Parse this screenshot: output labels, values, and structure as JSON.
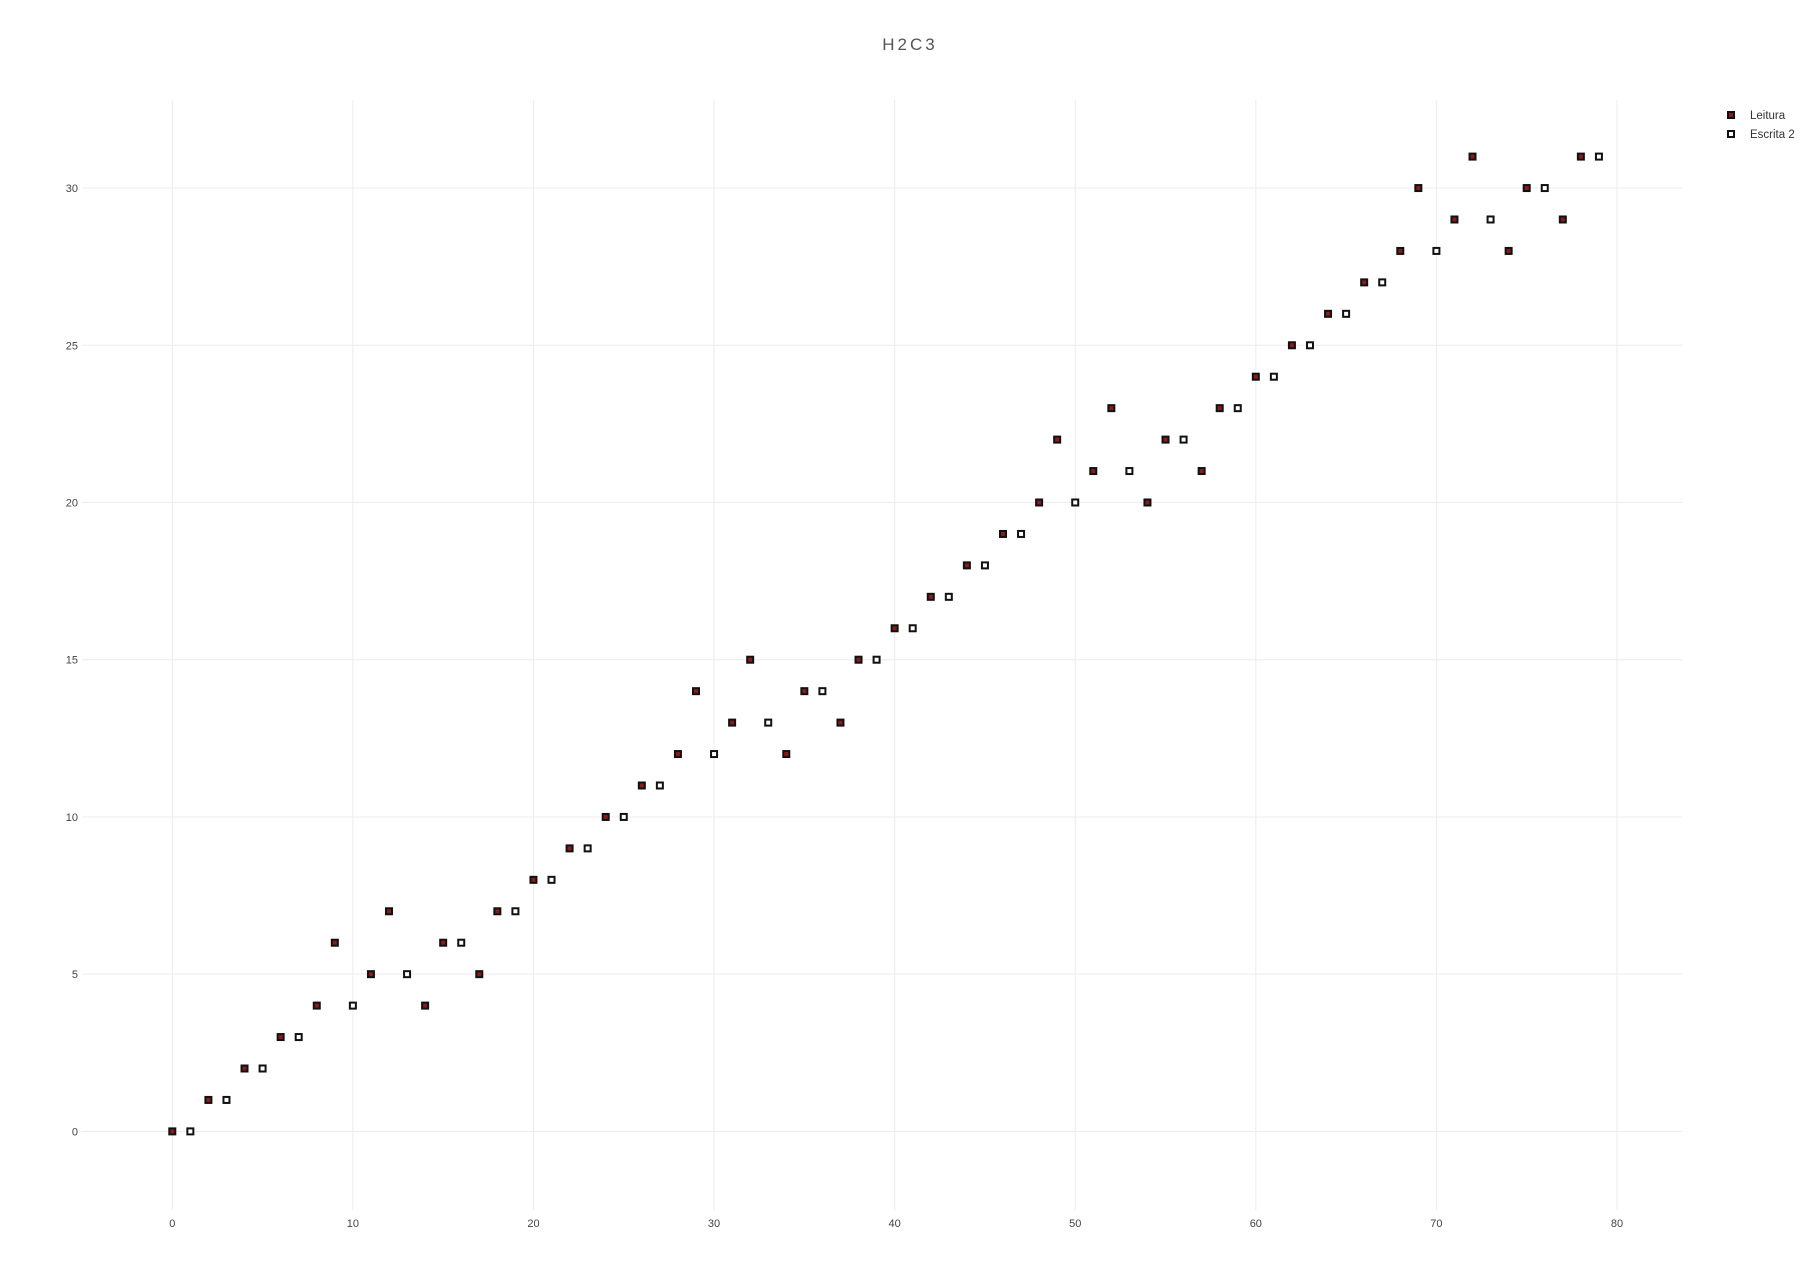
{
  "chart_data": {
    "type": "scatter",
    "title": "H2C3",
    "xlabel": "",
    "ylabel": "",
    "xlim": [
      -5,
      83.6
    ],
    "ylim": [
      -2.5,
      32.8
    ],
    "xticks": [
      0,
      10,
      20,
      30,
      40,
      50,
      60,
      70,
      80
    ],
    "yticks": [
      0,
      5,
      10,
      15,
      20,
      25,
      30
    ],
    "grid": true,
    "legend_position": "top-right",
    "series": [
      {
        "name": "Leitura",
        "fill": "#8b1a1a",
        "stroke": "#111111",
        "points": [
          [
            0,
            0
          ],
          [
            2,
            1
          ],
          [
            4,
            2
          ],
          [
            6,
            3
          ],
          [
            8,
            4
          ],
          [
            9,
            6
          ],
          [
            11,
            5
          ],
          [
            12,
            7
          ],
          [
            14,
            4
          ],
          [
            15,
            6
          ],
          [
            17,
            5
          ],
          [
            18,
            7
          ],
          [
            20,
            8
          ],
          [
            22,
            9
          ],
          [
            24,
            10
          ],
          [
            26,
            11
          ],
          [
            28,
            12
          ],
          [
            29,
            14
          ],
          [
            31,
            13
          ],
          [
            32,
            15
          ],
          [
            34,
            12
          ],
          [
            35,
            14
          ],
          [
            37,
            13
          ],
          [
            38,
            15
          ],
          [
            40,
            16
          ],
          [
            42,
            17
          ],
          [
            44,
            18
          ],
          [
            46,
            19
          ],
          [
            48,
            20
          ],
          [
            49,
            22
          ],
          [
            51,
            21
          ],
          [
            52,
            23
          ],
          [
            54,
            20
          ],
          [
            55,
            22
          ],
          [
            57,
            21
          ],
          [
            58,
            23
          ],
          [
            60,
            24
          ],
          [
            62,
            25
          ],
          [
            64,
            26
          ],
          [
            66,
            27
          ],
          [
            68,
            28
          ],
          [
            69,
            30
          ],
          [
            71,
            29
          ],
          [
            72,
            31
          ],
          [
            74,
            28
          ],
          [
            75,
            30
          ],
          [
            77,
            29
          ],
          [
            78,
            31
          ]
        ]
      },
      {
        "name": "Escrita 2",
        "fill": "#ffffff",
        "stroke": "#111111",
        "points": [
          [
            1,
            0
          ],
          [
            3,
            1
          ],
          [
            5,
            2
          ],
          [
            7,
            3
          ],
          [
            10,
            4
          ],
          [
            13,
            5
          ],
          [
            16,
            6
          ],
          [
            19,
            7
          ],
          [
            21,
            8
          ],
          [
            23,
            9
          ],
          [
            25,
            10
          ],
          [
            27,
            11
          ],
          [
            30,
            12
          ],
          [
            33,
            13
          ],
          [
            36,
            14
          ],
          [
            39,
            15
          ],
          [
            41,
            16
          ],
          [
            43,
            17
          ],
          [
            45,
            18
          ],
          [
            47,
            19
          ],
          [
            50,
            20
          ],
          [
            53,
            21
          ],
          [
            56,
            22
          ],
          [
            59,
            23
          ],
          [
            61,
            24
          ],
          [
            63,
            25
          ],
          [
            65,
            26
          ],
          [
            67,
            27
          ],
          [
            70,
            28
          ],
          [
            73,
            29
          ],
          [
            76,
            30
          ],
          [
            79,
            31
          ]
        ]
      }
    ]
  }
}
